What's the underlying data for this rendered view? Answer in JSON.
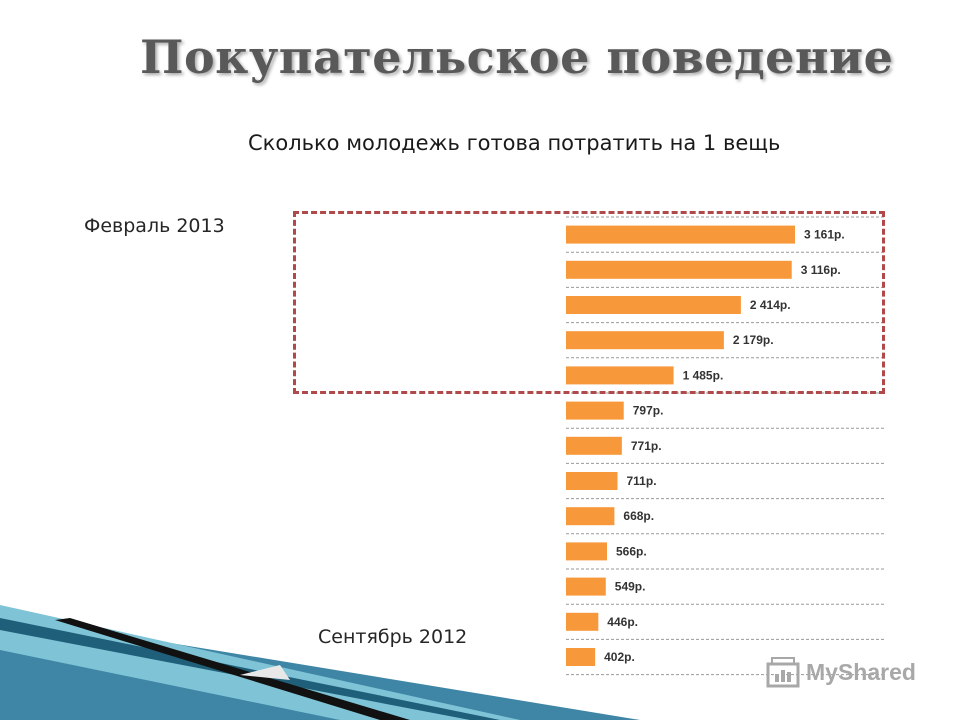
{
  "slide": {
    "title": "Покупательское поведение",
    "subtitle": "Сколько молодежь готова потратить на 1 вещь",
    "label_top": "Февраль 2013",
    "label_bottom": "Сентябрь 2012"
  },
  "watermark": {
    "text": "MyShared"
  },
  "colors": {
    "bar": "#f7993a",
    "highlight_border": "#b04a4a",
    "grid": "#9a9a9a"
  },
  "chart_data": {
    "type": "bar",
    "orientation": "horizontal",
    "values": [
      3161,
      3116,
      2414,
      2179,
      1485,
      797,
      771,
      711,
      668,
      566,
      549,
      446,
      402
    ],
    "labels": [
      "3 161р.",
      "3 116р.",
      "2 414р.",
      "2 179р.",
      "1 485р.",
      "797р.",
      "771р.",
      "711р.",
      "668р.",
      "566р.",
      "549р.",
      "446р.",
      "402р."
    ],
    "highlighted_count": 5,
    "grid": true
  }
}
